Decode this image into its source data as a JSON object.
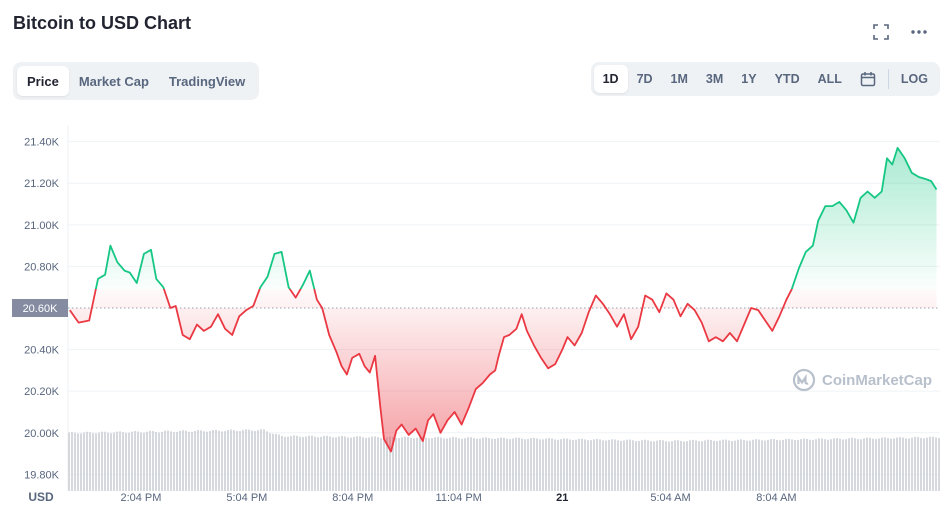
{
  "title": "Bitcoin to USD Chart",
  "header_icons": [
    "fullscreen-icon",
    "more-icon"
  ],
  "tabs": [
    {
      "label": "Price",
      "active": true
    },
    {
      "label": "Market Cap",
      "active": false
    },
    {
      "label": "TradingView",
      "active": false
    }
  ],
  "ranges": [
    {
      "label": "1D",
      "active": true
    },
    {
      "label": "7D",
      "active": false
    },
    {
      "label": "1M",
      "active": false
    },
    {
      "label": "3M",
      "active": false
    },
    {
      "label": "1Y",
      "active": false
    },
    {
      "label": "YTD",
      "active": false
    },
    {
      "label": "ALL",
      "active": false
    }
  ],
  "calendar_icon": "calendar-icon",
  "log_label": "LOG",
  "watermark": "CoinMarketCap",
  "colors": {
    "up": "#16c784",
    "down": "#ea3943",
    "grid": "#eff2f5",
    "axis_text": "#58667e",
    "volume": "#d5d9de",
    "baseline_label_bg": "#858ca2"
  },
  "chart_data": {
    "type": "area",
    "y_unit_label": "USD",
    "ylim": [
      19720,
      21480
    ],
    "y_ticks": [
      19800,
      20000,
      20200,
      20400,
      20600,
      20800,
      21000,
      21200,
      21400
    ],
    "y_tick_labels": [
      "19.80K",
      "20.00K",
      "20.20K",
      "20.40K",
      "20.60K",
      "20.80K",
      "21.00K",
      "21.20K",
      "21.40K"
    ],
    "baseline": 20600,
    "baseline_label": "20.60K",
    "x_hours_range": [
      12.0,
      36.7
    ],
    "x_ticks": [
      {
        "h": 14.0667,
        "label": "2:04 PM"
      },
      {
        "h": 17.0667,
        "label": "5:04 PM"
      },
      {
        "h": 20.0667,
        "label": "8:04 PM"
      },
      {
        "h": 23.0667,
        "label": "11:04 PM"
      },
      {
        "h": 26.0,
        "label": "21",
        "bold": true
      },
      {
        "h": 29.0667,
        "label": "5:04 AM"
      },
      {
        "h": 32.0667,
        "label": "8:04 AM"
      }
    ],
    "grid": true,
    "series": [
      {
        "values": [
          [
            12.05,
            20590
          ],
          [
            12.3,
            20530
          ],
          [
            12.6,
            20540
          ],
          [
            12.85,
            20740
          ],
          [
            13.05,
            20760
          ],
          [
            13.2,
            20900
          ],
          [
            13.4,
            20820
          ],
          [
            13.6,
            20780
          ],
          [
            13.75,
            20770
          ],
          [
            13.95,
            20720
          ],
          [
            14.15,
            20860
          ],
          [
            14.35,
            20880
          ],
          [
            14.5,
            20740
          ],
          [
            14.7,
            20700
          ],
          [
            14.9,
            20600
          ],
          [
            15.05,
            20610
          ],
          [
            15.25,
            20470
          ],
          [
            15.45,
            20450
          ],
          [
            15.65,
            20520
          ],
          [
            15.85,
            20490
          ],
          [
            16.05,
            20510
          ],
          [
            16.25,
            20570
          ],
          [
            16.45,
            20500
          ],
          [
            16.65,
            20470
          ],
          [
            16.85,
            20560
          ],
          [
            17.05,
            20590
          ],
          [
            17.25,
            20610
          ],
          [
            17.45,
            20700
          ],
          [
            17.65,
            20750
          ],
          [
            17.85,
            20860
          ],
          [
            18.05,
            20870
          ],
          [
            18.25,
            20700
          ],
          [
            18.45,
            20650
          ],
          [
            18.65,
            20710
          ],
          [
            18.85,
            20780
          ],
          [
            19.05,
            20640
          ],
          [
            19.2,
            20600
          ],
          [
            19.4,
            20470
          ],
          [
            19.6,
            20390
          ],
          [
            19.75,
            20320
          ],
          [
            19.9,
            20280
          ],
          [
            20.05,
            20360
          ],
          [
            20.25,
            20380
          ],
          [
            20.4,
            20320
          ],
          [
            20.55,
            20290
          ],
          [
            20.7,
            20370
          ],
          [
            20.85,
            20120
          ],
          [
            20.95,
            19970
          ],
          [
            21.15,
            19910
          ],
          [
            21.3,
            20010
          ],
          [
            21.45,
            20040
          ],
          [
            21.65,
            19990
          ],
          [
            21.85,
            20020
          ],
          [
            22.05,
            19960
          ],
          [
            22.2,
            20060
          ],
          [
            22.35,
            20090
          ],
          [
            22.55,
            20000
          ],
          [
            22.75,
            20060
          ],
          [
            22.95,
            20100
          ],
          [
            23.15,
            20040
          ],
          [
            23.35,
            20120
          ],
          [
            23.55,
            20210
          ],
          [
            23.75,
            20240
          ],
          [
            23.95,
            20280
          ],
          [
            24.1,
            20300
          ],
          [
            24.2,
            20370
          ],
          [
            24.35,
            20460
          ],
          [
            24.5,
            20470
          ],
          [
            24.7,
            20500
          ],
          [
            24.85,
            20570
          ],
          [
            25.0,
            20490
          ],
          [
            25.2,
            20420
          ],
          [
            25.4,
            20360
          ],
          [
            25.6,
            20310
          ],
          [
            25.8,
            20330
          ],
          [
            26.0,
            20400
          ],
          [
            26.15,
            20460
          ],
          [
            26.35,
            20420
          ],
          [
            26.55,
            20480
          ],
          [
            26.75,
            20580
          ],
          [
            26.95,
            20660
          ],
          [
            27.15,
            20620
          ],
          [
            27.35,
            20570
          ],
          [
            27.55,
            20510
          ],
          [
            27.75,
            20570
          ],
          [
            27.95,
            20450
          ],
          [
            28.15,
            20510
          ],
          [
            28.35,
            20660
          ],
          [
            28.55,
            20640
          ],
          [
            28.75,
            20580
          ],
          [
            28.95,
            20670
          ],
          [
            29.15,
            20640
          ],
          [
            29.35,
            20560
          ],
          [
            29.55,
            20620
          ],
          [
            29.75,
            20590
          ],
          [
            29.95,
            20530
          ],
          [
            30.15,
            20440
          ],
          [
            30.35,
            20460
          ],
          [
            30.55,
            20440
          ],
          [
            30.75,
            20480
          ],
          [
            30.95,
            20440
          ],
          [
            31.15,
            20520
          ],
          [
            31.35,
            20600
          ],
          [
            31.55,
            20590
          ],
          [
            31.75,
            20540
          ],
          [
            31.95,
            20490
          ],
          [
            32.15,
            20560
          ],
          [
            32.35,
            20640
          ],
          [
            32.5,
            20690
          ],
          [
            32.7,
            20790
          ],
          [
            32.9,
            20870
          ],
          [
            33.1,
            20900
          ],
          [
            33.25,
            21020
          ],
          [
            33.45,
            21090
          ],
          [
            33.65,
            21090
          ],
          [
            33.85,
            21110
          ],
          [
            34.05,
            21070
          ],
          [
            34.25,
            21010
          ],
          [
            34.45,
            21130
          ],
          [
            34.65,
            21160
          ],
          [
            34.85,
            21130
          ],
          [
            35.05,
            21160
          ],
          [
            35.2,
            21320
          ],
          [
            35.35,
            21290
          ],
          [
            35.5,
            21370
          ],
          [
            35.7,
            21320
          ],
          [
            35.9,
            21250
          ],
          [
            36.1,
            21230
          ],
          [
            36.3,
            21220
          ],
          [
            36.45,
            21210
          ],
          [
            36.6,
            21170
          ]
        ]
      }
    ],
    "volume_profile": [
      [
        12.0,
        0.95
      ],
      [
        17.5,
        1.0
      ],
      [
        18.0,
        0.9
      ],
      [
        21.0,
        0.88
      ],
      [
        25.0,
        0.86
      ],
      [
        29.0,
        0.82
      ],
      [
        32.0,
        0.84
      ],
      [
        36.7,
        0.88
      ]
    ]
  }
}
